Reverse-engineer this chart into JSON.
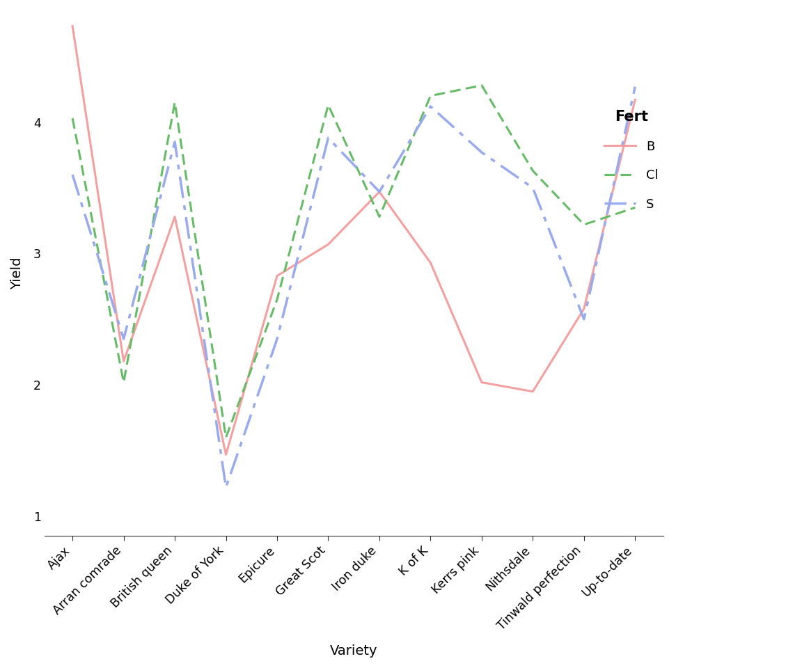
{
  "varieties": [
    "Ajax",
    "Arran comrade",
    "British queen",
    "Duke of York",
    "Epicure",
    "Great Scot",
    "Iron duke",
    "K of K",
    "Kerrs pink",
    "Nithsdale",
    "Tinwald perfection",
    "Up-to-date"
  ],
  "B": [
    4.73,
    2.18,
    3.28,
    1.47,
    2.83,
    3.07,
    3.47,
    2.93,
    2.02,
    1.95,
    2.58,
    4.17
  ],
  "Cl": [
    4.03,
    2.02,
    4.15,
    1.6,
    2.65,
    4.13,
    3.28,
    4.2,
    4.28,
    3.63,
    3.22,
    3.35
  ],
  "S": [
    3.6,
    2.35,
    3.85,
    1.22,
    2.35,
    3.88,
    3.47,
    4.12,
    3.77,
    3.5,
    2.5,
    4.27
  ],
  "B_color": "#F4A0A0",
  "Cl_color": "#66BB66",
  "S_color": "#99AAEE",
  "xlabel": "Variety",
  "ylabel": "Yield",
  "ylim": [
    0.85,
    4.85
  ],
  "yticks": [
    1,
    2,
    3,
    4
  ],
  "legend_title": "Fert",
  "legend_labels": [
    "B",
    "Cl",
    "S"
  ]
}
